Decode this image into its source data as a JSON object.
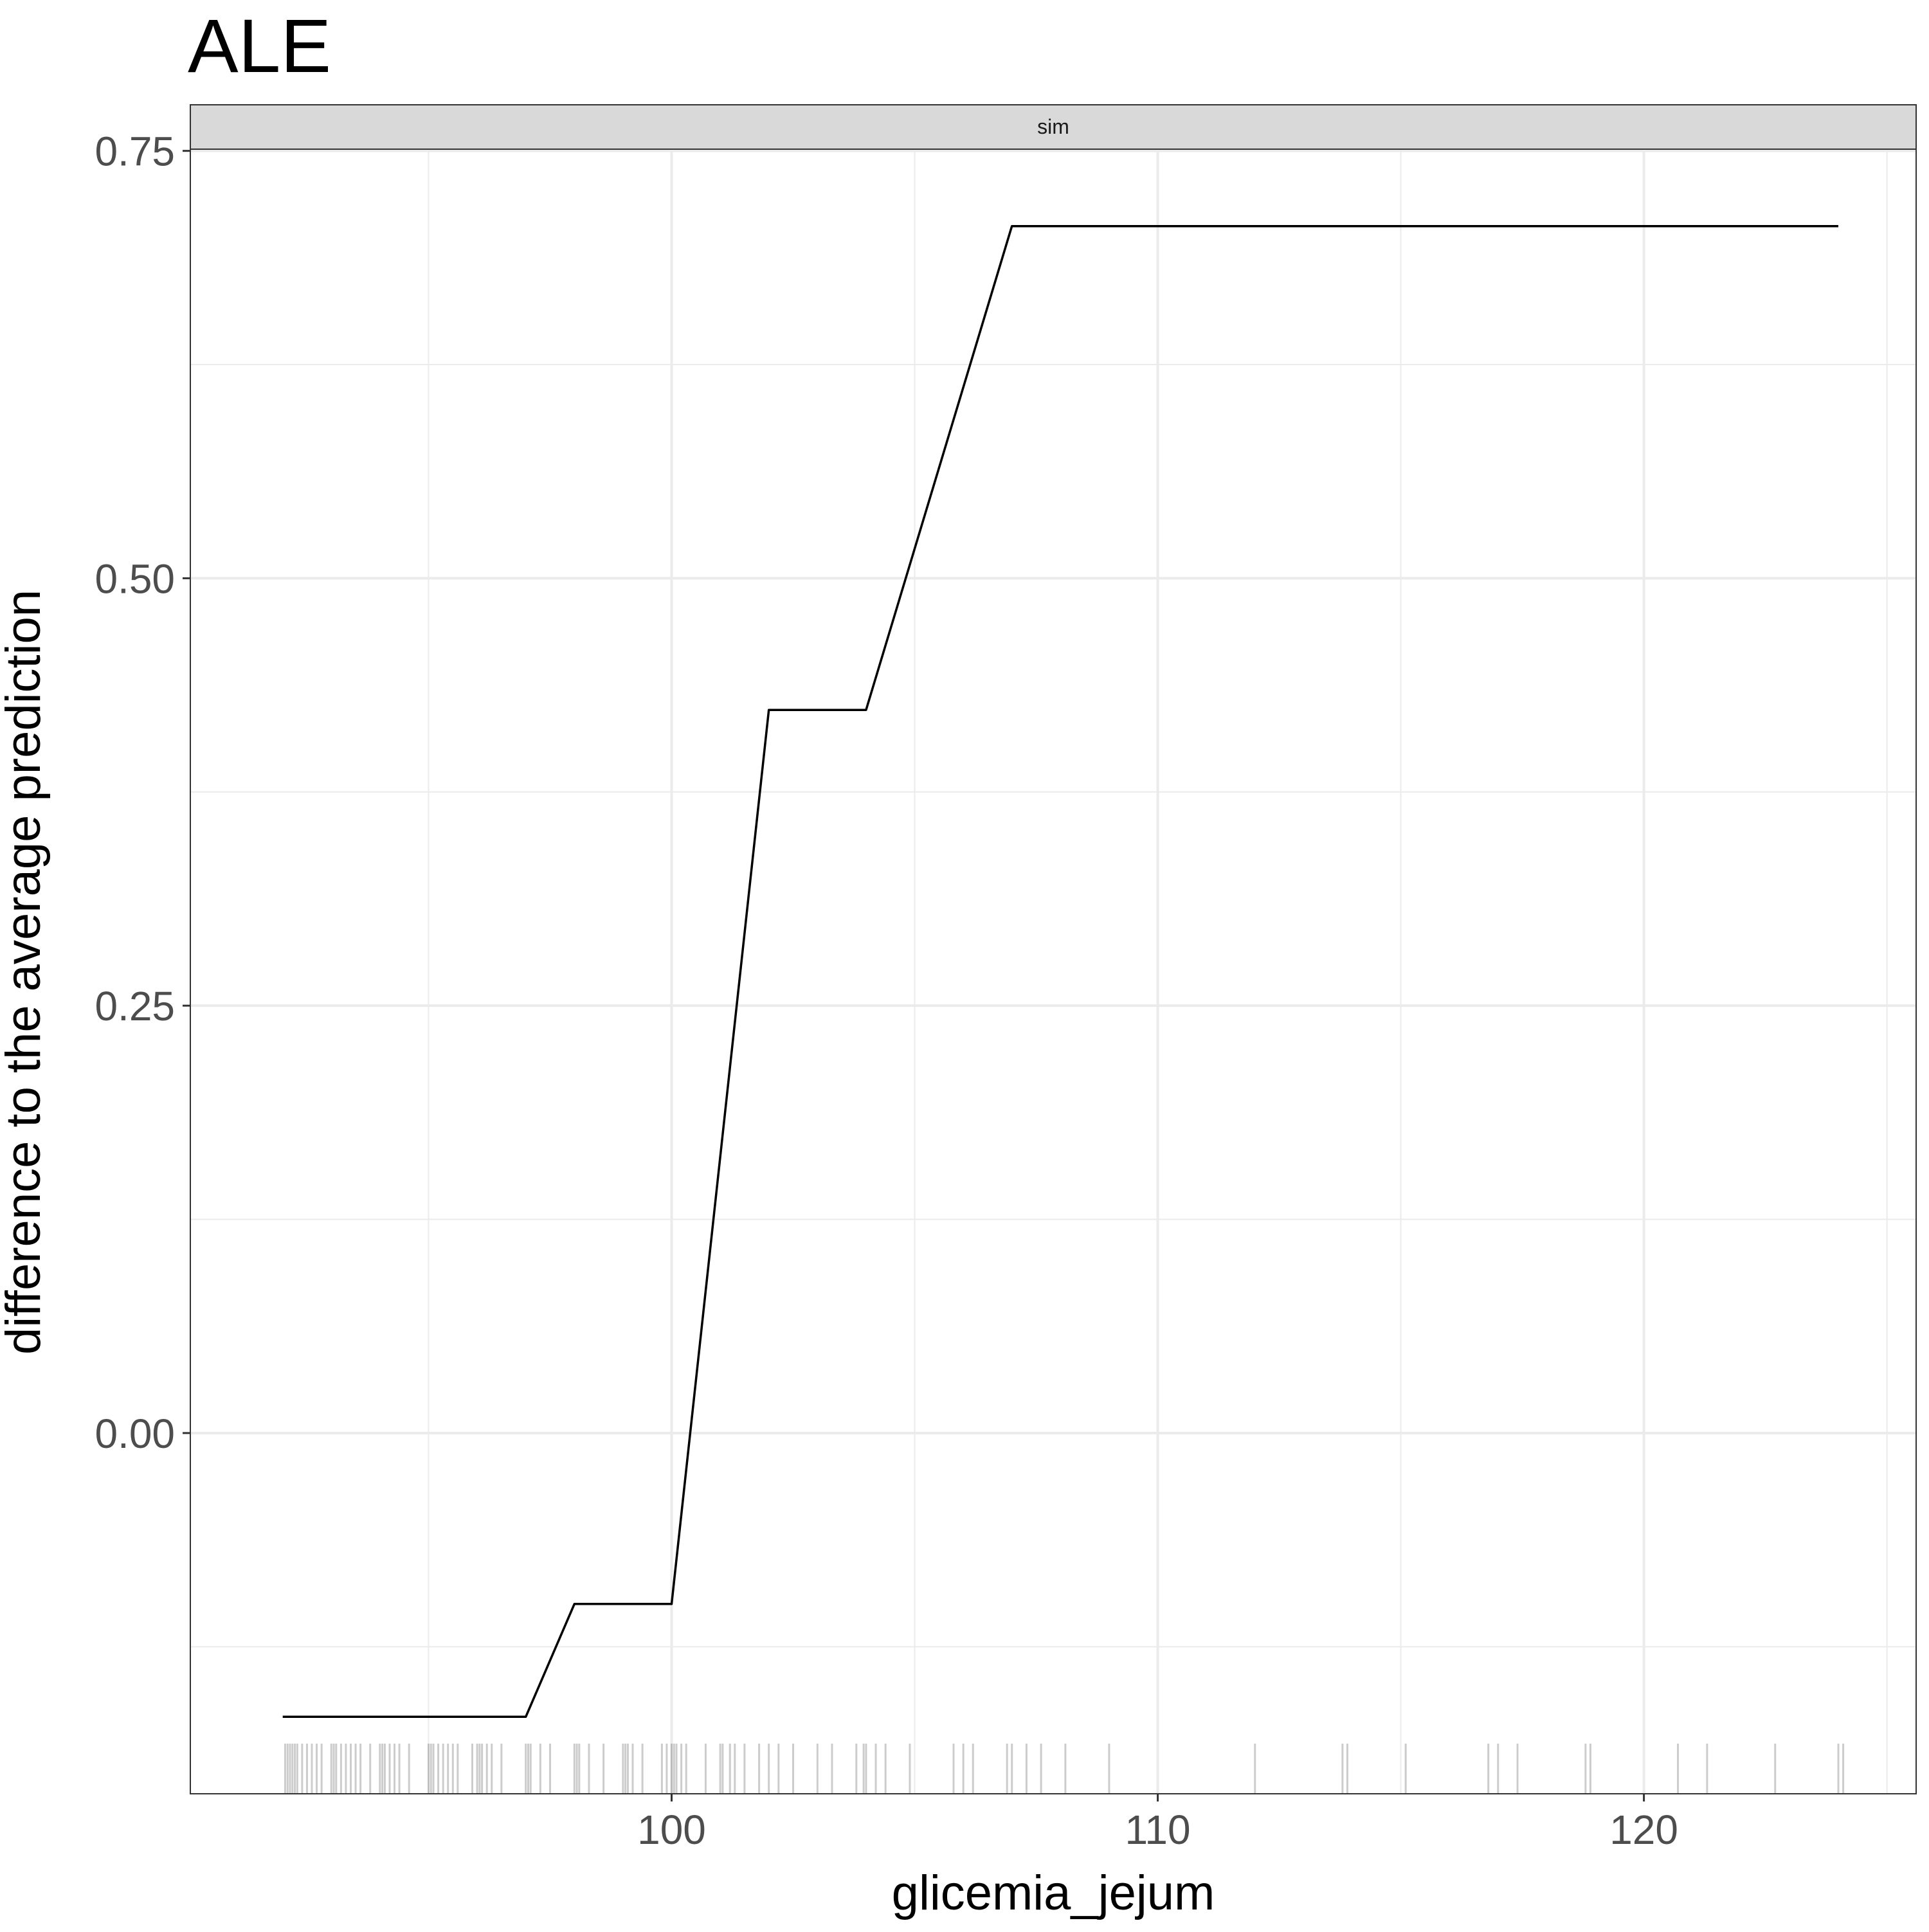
{
  "chart_data": {
    "type": "line",
    "title": "ALE",
    "facet_label": "sim",
    "xlabel": "glicemia_jejum",
    "ylabel": "difference to the average prediction",
    "xlim": [
      90.1,
      125.6
    ],
    "ylim": [
      -0.211,
      0.751
    ],
    "x_ticks": [
      100,
      110,
      120
    ],
    "x_tick_labels": [
      "100",
      "110",
      "120"
    ],
    "x_minor_ticks": [
      95,
      105,
      115,
      125
    ],
    "y_ticks": [
      0.0,
      0.25,
      0.5,
      0.75
    ],
    "y_tick_labels": [
      "0.00",
      "0.25",
      "0.50",
      "0.75"
    ],
    "y_minor_ticks": [
      -0.125,
      0.125,
      0.375,
      0.625
    ],
    "grid": true,
    "legend": "none",
    "series": [
      {
        "x": [
          92,
          97,
          98,
          100,
          102,
          104,
          107,
          124
        ],
        "y": [
          -0.166,
          -0.166,
          -0.1,
          -0.1,
          0.423,
          0.423,
          0.706,
          0.706
        ]
      }
    ],
    "rug_x": [
      92.05,
      92.1,
      92.15,
      92.2,
      92.25,
      92.3,
      92.4,
      92.5,
      92.6,
      92.7,
      92.8,
      93.0,
      93.05,
      93.1,
      93.2,
      93.3,
      93.4,
      93.5,
      93.6,
      93.8,
      94.0,
      94.05,
      94.1,
      94.2,
      94.3,
      94.4,
      94.6,
      95.0,
      95.05,
      95.1,
      95.2,
      95.3,
      95.4,
      95.5,
      95.6,
      95.9,
      96.0,
      96.05,
      96.1,
      96.2,
      96.3,
      96.5,
      97.0,
      97.05,
      97.1,
      97.3,
      97.5,
      98.0,
      98.05,
      98.1,
      98.3,
      98.6,
      99.0,
      99.05,
      99.1,
      99.2,
      99.4,
      99.8,
      99.9,
      100.0,
      100.05,
      100.1,
      100.2,
      100.3,
      100.7,
      101.0,
      101.05,
      101.2,
      101.3,
      101.5,
      101.8,
      102.0,
      102.2,
      102.5,
      103.0,
      103.3,
      103.8,
      103.95,
      104.0,
      104.2,
      104.4,
      104.9,
      105.8,
      106.0,
      106.2,
      106.9,
      107.0,
      107.3,
      107.6,
      108.1,
      109.0,
      112.0,
      113.8,
      113.9,
      115.1,
      116.8,
      117.0,
      117.4,
      118.8,
      118.9,
      120.7,
      121.3,
      122.7,
      124.0,
      124.1
    ]
  }
}
